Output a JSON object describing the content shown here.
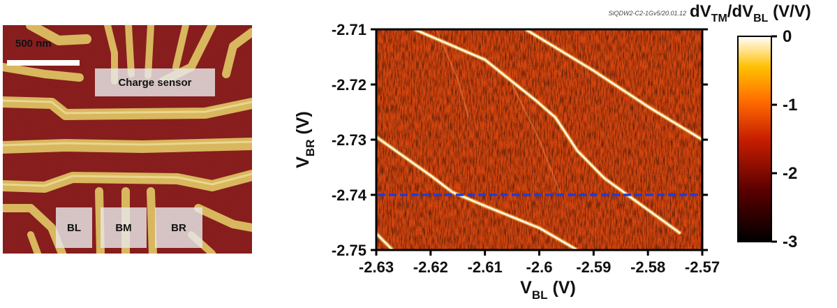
{
  "afm_image": {
    "scalebar_label": "500 nm",
    "gate_labels": {
      "charge_sensor": "Charge sensor",
      "bl": "BL",
      "bm": "BM",
      "br": "BR"
    }
  },
  "chart_data": {
    "type": "heatmap",
    "run_id": "SiQDW2-C2-1Gv5/20.01.12",
    "title_main": "dV",
    "title_sub1": "TM",
    "title_mid": "/dV",
    "title_sub2": "BL",
    "title_unit": " (V/V)",
    "xlabel_main": "V",
    "xlabel_sub": "BL",
    "xlabel_unit": " (V)",
    "ylabel_main": "V",
    "ylabel_sub": "BR",
    "ylabel_unit": " (V)",
    "xlim": [
      -2.63,
      -2.57
    ],
    "ylim": [
      -2.75,
      -2.71
    ],
    "x_ticks": [
      -2.63,
      -2.62,
      -2.61,
      -2.6,
      -2.59,
      -2.58,
      -2.57
    ],
    "x_tick_labels": [
      "-2.63",
      "-2.62",
      "-2.61",
      "-2.6",
      "-2.59",
      "-2.58",
      "-2.57"
    ],
    "y_ticks": [
      -2.71,
      -2.72,
      -2.73,
      -2.74,
      -2.75
    ],
    "y_tick_labels": [
      "-2.71",
      "-2.72",
      "-2.73",
      "-2.74",
      "-2.75"
    ],
    "colorbar": {
      "range": [
        -3,
        0
      ],
      "ticks": [
        0,
        -1,
        -2,
        -3
      ],
      "tick_labels": [
        "0",
        "-1",
        "-2",
        "-3"
      ]
    },
    "transition_lines": [
      {
        "points": [
          [
            -2.623,
            -2.71
          ],
          [
            -2.61,
            -2.7155
          ],
          [
            -2.6005,
            -2.723
          ],
          [
            -2.597,
            -2.726
          ],
          [
            -2.593,
            -2.732
          ],
          [
            -2.588,
            -2.737
          ],
          [
            -2.574,
            -2.747
          ]
        ]
      },
      {
        "points": [
          [
            -2.6025,
            -2.71
          ],
          [
            -2.59,
            -2.7175
          ],
          [
            -2.58,
            -2.724
          ],
          [
            -2.57,
            -2.73
          ]
        ]
      },
      {
        "points": [
          [
            -2.63,
            -2.7295
          ],
          [
            -2.62,
            -2.7365
          ],
          [
            -2.616,
            -2.7395
          ],
          [
            -2.61,
            -2.742
          ],
          [
            -2.6,
            -2.746
          ],
          [
            -2.593,
            -2.75
          ]
        ]
      },
      {
        "points": [
          [
            -2.63,
            -2.747
          ],
          [
            -2.627,
            -2.75
          ]
        ]
      }
    ],
    "faint_lines": [
      {
        "points": [
          [
            -2.619,
            -2.71
          ],
          [
            -2.615,
            -2.719
          ],
          [
            -2.613,
            -2.726
          ]
        ]
      },
      {
        "points": [
          [
            -2.605,
            -2.72
          ],
          [
            -2.6,
            -2.73
          ],
          [
            -2.596,
            -2.74
          ]
        ]
      }
    ],
    "cut_line": {
      "y": -2.74,
      "color": "#1f3bdc"
    },
    "colors": {
      "cut_line": "#1f3bdc",
      "afm_background": "#7e1616",
      "afm_gate": "#d8b75e"
    }
  }
}
